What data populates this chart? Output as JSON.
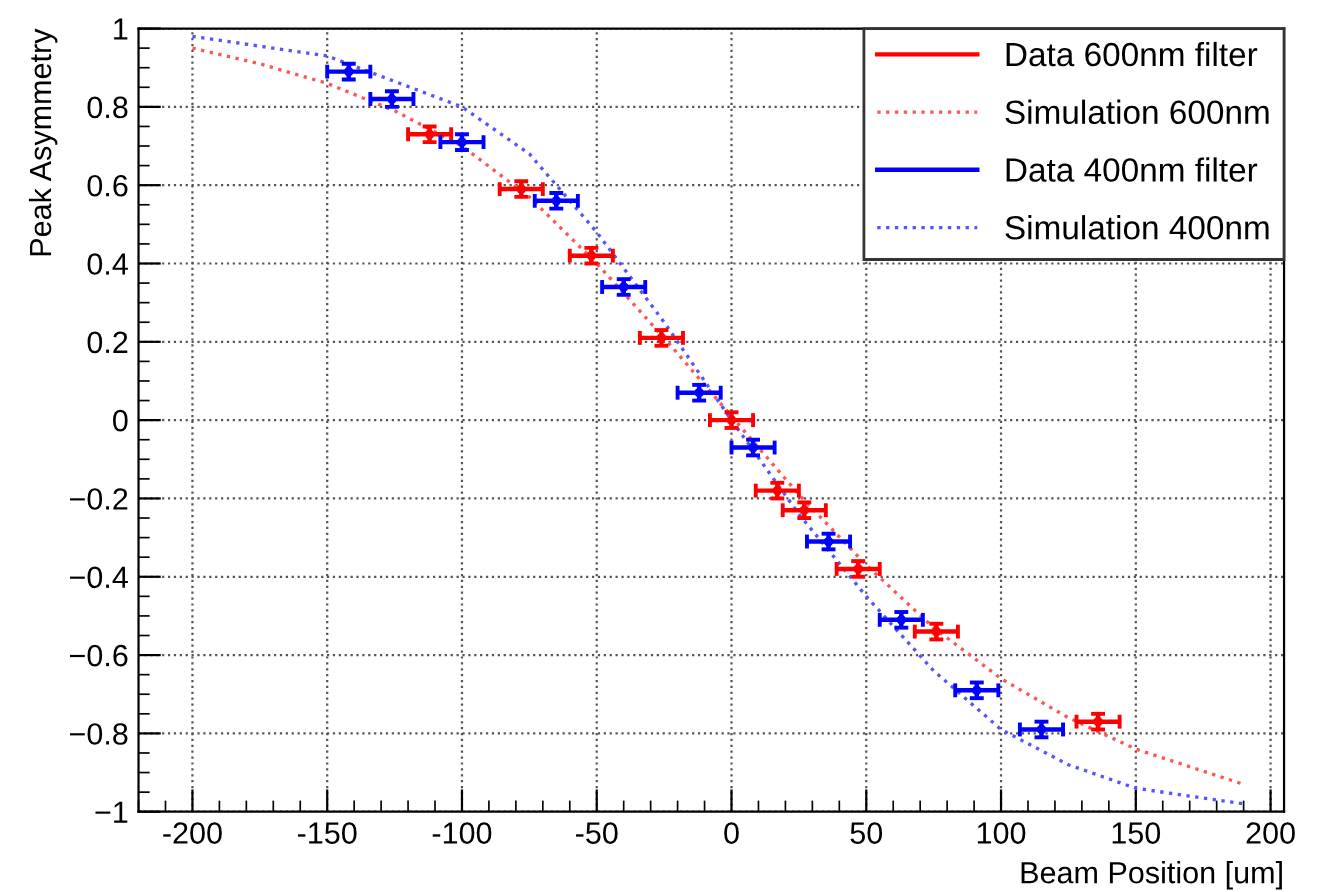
{
  "chart_data": {
    "type": "scatter",
    "xlabel": "Beam Position [um]",
    "ylabel": "Peak Asymmetry",
    "xlim": [
      -220,
      205
    ],
    "ylim": [
      -1,
      1
    ],
    "xticks": [
      -200,
      -150,
      -100,
      -50,
      0,
      50,
      100,
      150,
      200
    ],
    "yticks": [
      {
        "value": -1,
        "label": "−1"
      },
      {
        "value": -0.8,
        "label": "−0.8"
      },
      {
        "value": -0.6,
        "label": "−0.6"
      },
      {
        "value": -0.4,
        "label": "−0.4"
      },
      {
        "value": -0.2,
        "label": "−0.2"
      },
      0,
      0.2,
      0.4,
      0.6,
      0.8,
      1
    ],
    "grid": true,
    "legend": "top right",
    "series": [
      {
        "name": "Data 600nm filter",
        "color": "#ff0000",
        "x": [
          -112,
          -78,
          -52,
          -26,
          0,
          17,
          27,
          47,
          76,
          136
        ],
        "values": [
          0.73,
          0.59,
          0.42,
          0.21,
          0.0,
          -0.18,
          -0.23,
          -0.38,
          -0.54,
          -0.77
        ],
        "xerrors": [
          8,
          8,
          8,
          8,
          8,
          8,
          8,
          8,
          8,
          8
        ],
        "errors": [
          0.02,
          0.02,
          0.02,
          0.02,
          0.02,
          0.02,
          0.02,
          0.02,
          0.02,
          0.02
        ]
      },
      {
        "name": "Simulation 600nm",
        "type": "line",
        "line_style": "dotted",
        "color": "#ff5555",
        "x": [
          -200,
          -175,
          -150,
          -125,
          -100,
          -75,
          -50,
          -25,
          0,
          25,
          50,
          75,
          100,
          125,
          150,
          190
        ],
        "values": [
          0.95,
          0.91,
          0.86,
          0.79,
          0.7,
          0.57,
          0.4,
          0.21,
          0.01,
          -0.19,
          -0.37,
          -0.53,
          -0.66,
          -0.76,
          -0.84,
          -0.93
        ]
      },
      {
        "name": "Data 400nm filter",
        "color": "#0000ff",
        "x": [
          -142,
          -126,
          -100,
          -65,
          -40,
          -12,
          8,
          36,
          63,
          91,
          115
        ],
        "values": [
          0.89,
          0.82,
          0.71,
          0.56,
          0.34,
          0.07,
          -0.07,
          -0.31,
          -0.51,
          -0.69,
          -0.79
        ],
        "xerrors": [
          8,
          8,
          8,
          8,
          8,
          8,
          8,
          8,
          8,
          8,
          8
        ],
        "errors": [
          0.02,
          0.02,
          0.02,
          0.02,
          0.02,
          0.02,
          0.02,
          0.02,
          0.02,
          0.02,
          0.02
        ]
      },
      {
        "name": "Simulation 400nm",
        "type": "line",
        "line_style": "dotted",
        "color": "#5555ff",
        "x": [
          -200,
          -150,
          -100,
          -75,
          -50,
          -25,
          0,
          25,
          50,
          75,
          100,
          125,
          150,
          190
        ],
        "values": [
          0.98,
          0.93,
          0.8,
          0.68,
          0.48,
          0.25,
          0.0,
          -0.24,
          -0.45,
          -0.64,
          -0.79,
          -0.88,
          -0.94,
          -0.98
        ]
      }
    ]
  }
}
